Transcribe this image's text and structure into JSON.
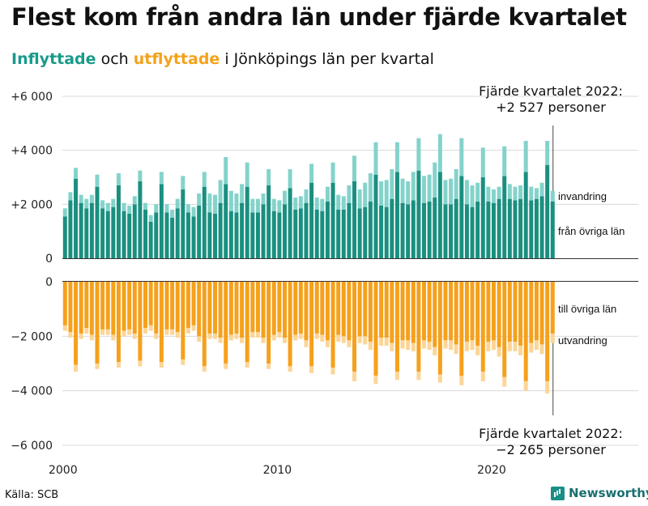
{
  "title": "Flest kom från andra län under fjärde kvartalet",
  "subtitle": {
    "part1": "Inflyttade",
    "part2": " och ",
    "part3": "utflyttade",
    "part4": " i Jönköpings län per kvartal"
  },
  "source": "Källa: SCB",
  "brand": {
    "name": "Newsworthy",
    "icon": "newsworthy-logo-icon"
  },
  "colors": {
    "in_dark": "#1a8f80",
    "in_light": "#84d3cb",
    "out_dark": "#f5a11c",
    "out_light": "#fcd597",
    "grid": "#d9d9d9",
    "axis": "#333333"
  },
  "annotations": {
    "top_line1": "Fjärde kvartalet 2022:",
    "top_line2": "+2 527 personer",
    "bottom_line1": "Fjärde kvartalet 2022:",
    "bottom_line2": "−2 265 personer"
  },
  "chart_data": {
    "type": "bar",
    "stacked": true,
    "diverging": true,
    "x_start": "2000 Q1",
    "x_end": "2022 Q4",
    "xticks": [
      "2000",
      "2010",
      "2020"
    ],
    "yticks_top": [
      "+6 000",
      "+4 000",
      "+2 000",
      "0"
    ],
    "yticks_bottom": [
      "0",
      "−2 000",
      "−4 000",
      "−6 000"
    ],
    "ylim": [
      -6000,
      6000
    ],
    "series_labels": {
      "in_other": "från övriga län",
      "in_imm": "invandring",
      "out_other": "till övriga län",
      "out_emi": "utvandring"
    },
    "in_other": [
      1550,
      2150,
      2950,
      2050,
      1850,
      2050,
      2650,
      1850,
      1750,
      1900,
      2700,
      1750,
      1650,
      2000,
      2850,
      1800,
      1350,
      1700,
      2750,
      1700,
      1500,
      1850,
      2550,
      1700,
      1550,
      1950,
      2650,
      1700,
      1650,
      2050,
      2750,
      1750,
      1700,
      2050,
      2650,
      1700,
      1700,
      2000,
      2700,
      1750,
      1700,
      2000,
      2600,
      1800,
      1850,
      2050,
      2800,
      1800,
      1750,
      2100,
      2800,
      1800,
      1800,
      2050,
      2850,
      1850,
      1900,
      2100,
      3100,
      1950,
      1900,
      2200,
      3200,
      2050,
      2000,
      2150,
      3250,
      2050,
      2100,
      2250,
      3200,
      2000,
      2000,
      2200,
      3050,
      2000,
      1900,
      2100,
      3000,
      2100,
      2050,
      2200,
      3050,
      2200,
      2150,
      2200,
      3200,
      2150,
      2200,
      2300,
      3450,
      2100
    ],
    "in_imm": [
      300,
      300,
      400,
      300,
      350,
      300,
      450,
      300,
      300,
      300,
      450,
      300,
      300,
      300,
      400,
      250,
      250,
      300,
      450,
      300,
      300,
      350,
      500,
      300,
      350,
      450,
      550,
      700,
      700,
      850,
      1000,
      750,
      700,
      700,
      900,
      500,
      500,
      400,
      600,
      450,
      450,
      500,
      700,
      450,
      450,
      500,
      700,
      450,
      450,
      550,
      750,
      550,
      500,
      650,
      950,
      700,
      900,
      1050,
      1200,
      900,
      1000,
      1100,
      1100,
      900,
      850,
      1050,
      1200,
      1000,
      1000,
      1300,
      1400,
      900,
      950,
      1100,
      1400,
      900,
      800,
      700,
      1100,
      550,
      500,
      450,
      1100,
      550,
      500,
      500,
      1150,
      500,
      400,
      500,
      900,
      400
    ],
    "out_other": [
      1600,
      1850,
      3050,
      1900,
      1700,
      1950,
      3000,
      1750,
      1750,
      1950,
      2950,
      1800,
      1750,
      1900,
      2900,
      1700,
      1600,
      1900,
      2950,
      1750,
      1750,
      1850,
      2850,
      1700,
      1600,
      2000,
      3100,
      1900,
      1900,
      2050,
      3000,
      1950,
      1900,
      2050,
      2950,
      1850,
      1850,
      2050,
      3000,
      1950,
      1850,
      2050,
      3100,
      1950,
      1900,
      2150,
      3100,
      1900,
      1950,
      2150,
      3150,
      1950,
      2000,
      2150,
      3300,
      2000,
      2000,
      2200,
      3450,
      2050,
      2050,
      2250,
      3300,
      2150,
      2150,
      2250,
      3300,
      2150,
      2200,
      2400,
      3400,
      2150,
      2150,
      2300,
      3450,
      2200,
      2150,
      2350,
      3300,
      2200,
      2150,
      2400,
      3500,
      2200,
      2200,
      2350,
      3650,
      2250,
      2150,
      2300,
      3650,
      1900
    ],
    "out_emi": [
      200,
      200,
      250,
      200,
      200,
      200,
      200,
      200,
      200,
      200,
      200,
      200,
      200,
      200,
      200,
      200,
      200,
      200,
      200,
      200,
      200,
      200,
      200,
      200,
      200,
      200,
      200,
      200,
      200,
      200,
      200,
      200,
      200,
      200,
      200,
      200,
      200,
      200,
      200,
      200,
      200,
      200,
      200,
      200,
      200,
      250,
      250,
      200,
      250,
      250,
      250,
      250,
      250,
      250,
      350,
      250,
      300,
      300,
      300,
      300,
      300,
      300,
      300,
      300,
      350,
      300,
      300,
      300,
      300,
      300,
      300,
      300,
      350,
      350,
      350,
      350,
      350,
      350,
      350,
      350,
      350,
      350,
      350,
      350,
      350,
      350,
      350,
      350,
      350,
      350,
      450,
      350
    ]
  }
}
